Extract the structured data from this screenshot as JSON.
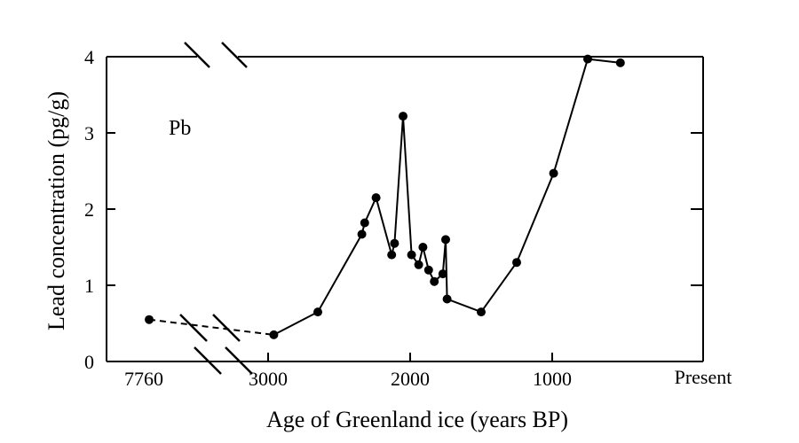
{
  "chart_data": {
    "type": "line",
    "annotation": "Pb",
    "xlabel": "Age of Greenland ice (years BP)",
    "ylabel": "Lead concentration (pg/g)",
    "ylim": [
      0,
      4
    ],
    "yticks": [
      "0",
      "1",
      "2",
      "3",
      "4"
    ],
    "xlim": [
      3500,
      0
    ],
    "xticks": [
      {
        "label": "3000",
        "value": 3000
      },
      {
        "label": "2000",
        "value": 2000
      },
      {
        "label": "1000",
        "value": 1000
      }
    ],
    "left_label": "7760",
    "right_label": "Present",
    "axis_break": true,
    "grid": false,
    "series": [
      {
        "style": "dashed",
        "points": [
          {
            "x": 7760,
            "y": 0.55
          },
          {
            "x": 2960,
            "y": 0.35
          }
        ]
      },
      {
        "style": "solid",
        "points": [
          {
            "x": 2960,
            "y": 0.35
          },
          {
            "x": 2650,
            "y": 0.65
          },
          {
            "x": 2340,
            "y": 1.67
          },
          {
            "x": 2320,
            "y": 1.82
          },
          {
            "x": 2240,
            "y": 2.15
          },
          {
            "x": 2130,
            "y": 1.4
          },
          {
            "x": 2110,
            "y": 1.55
          },
          {
            "x": 2050,
            "y": 3.22
          },
          {
            "x": 1990,
            "y": 1.4
          },
          {
            "x": 1940,
            "y": 1.27
          },
          {
            "x": 1910,
            "y": 1.5
          },
          {
            "x": 1870,
            "y": 1.2
          },
          {
            "x": 1830,
            "y": 1.05
          },
          {
            "x": 1770,
            "y": 1.15
          },
          {
            "x": 1750,
            "y": 1.6
          },
          {
            "x": 1740,
            "y": 0.82
          },
          {
            "x": 1500,
            "y": 0.65
          },
          {
            "x": 1250,
            "y": 1.3
          },
          {
            "x": 990,
            "y": 2.47
          },
          {
            "x": 750,
            "y": 3.97
          },
          {
            "x": 520,
            "y": 3.92
          }
        ]
      }
    ]
  }
}
